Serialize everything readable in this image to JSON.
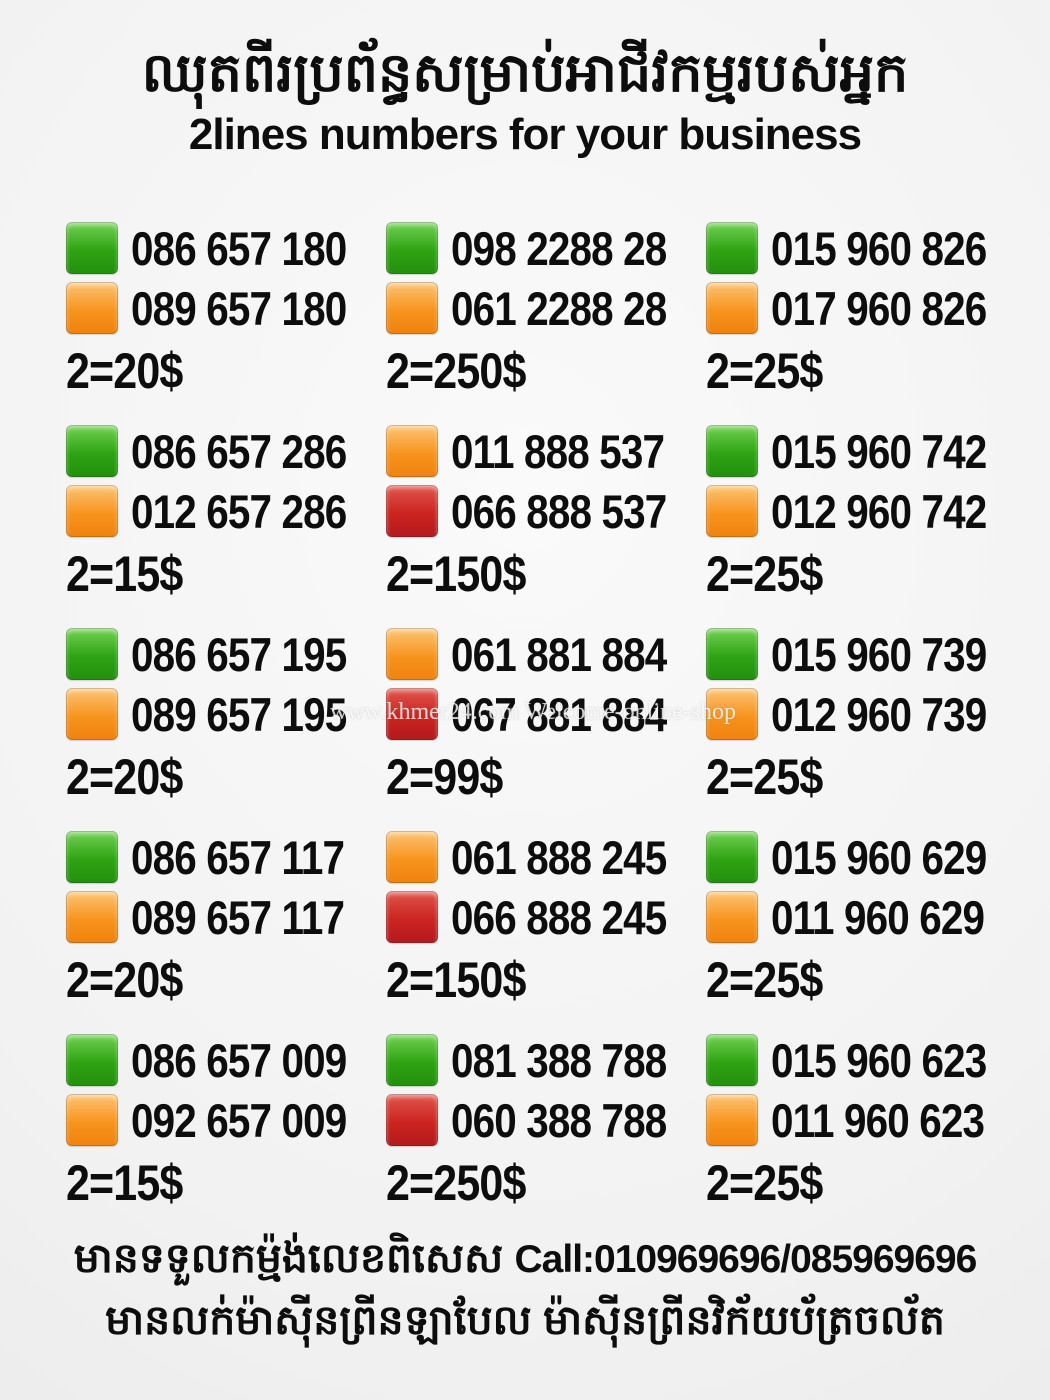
{
  "header": {
    "title_khmer": "ឈុតពីរប្រព័ន្ធសម្រាប់អាជីវកម្មរបស់អ្នក",
    "subtitle": "2lines numbers for your business"
  },
  "colors": {
    "green": "#2ea313",
    "orange": "#f7941e",
    "red": "#cc2420"
  },
  "watermark": "www.khmer24.com Welcome-online-shop",
  "grid": {
    "cells": [
      {
        "lines": [
          {
            "color": "green",
            "number": "086 657 180"
          },
          {
            "color": "orange",
            "number": "089 657 180"
          }
        ],
        "price": "2=20$"
      },
      {
        "lines": [
          {
            "color": "green",
            "number": "098 2288 28"
          },
          {
            "color": "orange",
            "number": "061 2288 28"
          }
        ],
        "price": "2=250$"
      },
      {
        "lines": [
          {
            "color": "green",
            "number": "015 960 826"
          },
          {
            "color": "orange",
            "number": "017 960 826"
          }
        ],
        "price": "2=25$"
      },
      {
        "lines": [
          {
            "color": "green",
            "number": "086 657 286"
          },
          {
            "color": "orange",
            "number": "012 657 286"
          }
        ],
        "price": "2=15$"
      },
      {
        "lines": [
          {
            "color": "orange",
            "number": "011 888 537"
          },
          {
            "color": "red",
            "number": "066 888 537"
          }
        ],
        "price": "2=150$"
      },
      {
        "lines": [
          {
            "color": "green",
            "number": "015 960 742"
          },
          {
            "color": "orange",
            "number": "012 960 742"
          }
        ],
        "price": "2=25$"
      },
      {
        "lines": [
          {
            "color": "green",
            "number": "086 657 195"
          },
          {
            "color": "orange",
            "number": "089 657 195"
          }
        ],
        "price": "2=20$"
      },
      {
        "lines": [
          {
            "color": "orange",
            "number": "061 881 884"
          },
          {
            "color": "red",
            "number": "067 881 884"
          }
        ],
        "price": "2=99$"
      },
      {
        "lines": [
          {
            "color": "green",
            "number": "015 960 739"
          },
          {
            "color": "orange",
            "number": "012 960 739"
          }
        ],
        "price": "2=25$"
      },
      {
        "lines": [
          {
            "color": "green",
            "number": "086 657 117"
          },
          {
            "color": "orange",
            "number": "089 657 117"
          }
        ],
        "price": "2=20$"
      },
      {
        "lines": [
          {
            "color": "orange",
            "number": "061 888 245"
          },
          {
            "color": "red",
            "number": "066 888 245"
          }
        ],
        "price": "2=150$"
      },
      {
        "lines": [
          {
            "color": "green",
            "number": "015 960 629"
          },
          {
            "color": "orange",
            "number": "011 960 629"
          }
        ],
        "price": "2=25$"
      },
      {
        "lines": [
          {
            "color": "green",
            "number": "086 657 009"
          },
          {
            "color": "orange",
            "number": "092 657 009"
          }
        ],
        "price": "2=15$"
      },
      {
        "lines": [
          {
            "color": "green",
            "number": "081 388 788"
          },
          {
            "color": "red",
            "number": "060 388 788"
          }
        ],
        "price": "2=250$"
      },
      {
        "lines": [
          {
            "color": "green",
            "number": "015 960 623"
          },
          {
            "color": "orange",
            "number": "011 960 623"
          }
        ],
        "price": "2=25$"
      }
    ]
  },
  "footer": {
    "line1_khmer": "មានទទួលកម្ម៉ង់លេខពិសេស",
    "line1_call": "Call:010969696/085969696",
    "line2_khmer": "មានលក់ម៉ាស៊ីនព្រីនឡាបែល ម៉ាស៊ីនព្រីនវិក័យប័ត្រចល័ត"
  }
}
